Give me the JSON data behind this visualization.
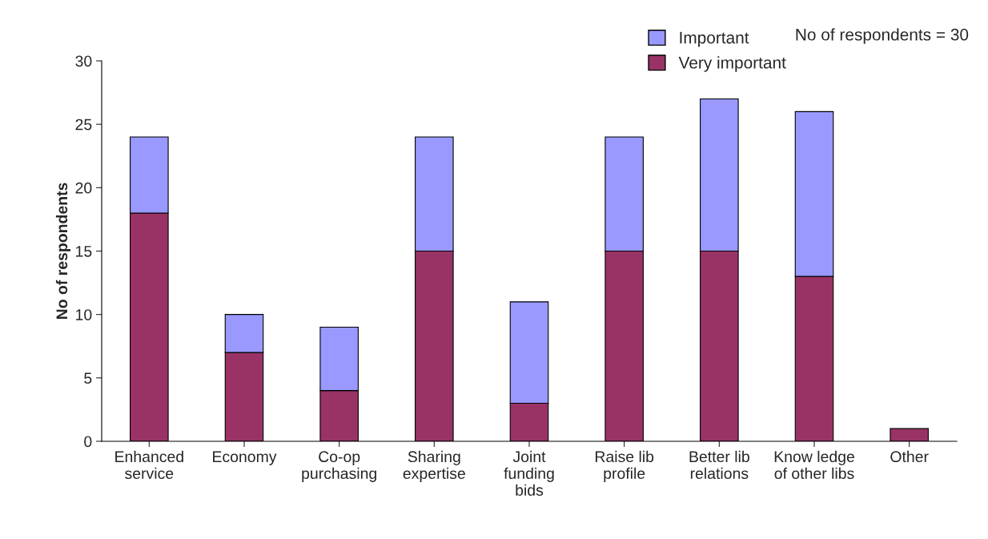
{
  "chart_data": {
    "type": "bar",
    "stacked": true,
    "ylabel": "No of respondents",
    "categories": [
      "Enhanced\nservice",
      "Economy",
      "Co-op\npurchasing",
      "Sharing\nexpertise",
      "Joint\nfunding\nbids",
      "Raise lib\nprofile",
      "Better lib\nrelations",
      "Know ledge\nof other libs",
      "Other"
    ],
    "series": [
      {
        "name": "Very important",
        "color": "#993366",
        "values": [
          18,
          7,
          4,
          15,
          3,
          15,
          15,
          13,
          1
        ]
      },
      {
        "name": "Important",
        "color": "#9999ff",
        "values": [
          6,
          3,
          5,
          9,
          8,
          9,
          12,
          13,
          null
        ]
      }
    ],
    "ylim": [
      0,
      30
    ],
    "yticks": [
      0,
      5,
      10,
      15,
      20,
      25,
      30
    ],
    "grid": false,
    "legend": "top",
    "annotations": [
      "No of respondents = 30"
    ]
  }
}
